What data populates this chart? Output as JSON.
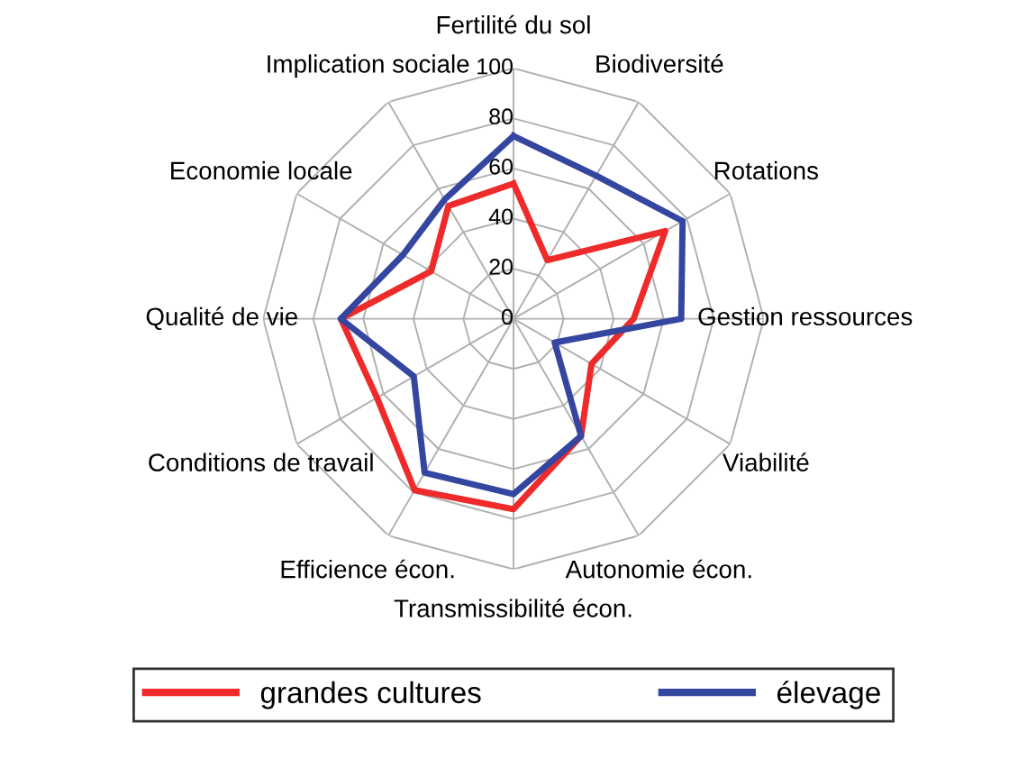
{
  "chart_data": {
    "type": "radar",
    "categories": [
      "Fertilité du sol",
      "Biodiversité",
      "Rotations",
      "Gestion ressources",
      "Viabilité",
      "Autonomie écon.",
      "Transmissibilité écon.",
      "Efficience écon.",
      "Conditions de travail",
      "Qualité de vie",
      "Economie locale",
      "Implication sociale"
    ],
    "series": [
      {
        "name": "grandes cultures",
        "color": "#ee2a2a",
        "values": [
          54,
          27,
          70,
          48,
          36,
          54,
          76,
          79,
          63,
          69,
          38,
          52
        ]
      },
      {
        "name": "élevage",
        "color": "#3446a0",
        "values": [
          73,
          66,
          78,
          67,
          19,
          54,
          70,
          71,
          46,
          69,
          51,
          55
        ]
      }
    ],
    "ylim": [
      0,
      100
    ],
    "yticks": [
      0,
      20,
      40,
      60,
      80,
      100
    ],
    "grid": true,
    "legend": "bottom",
    "marker": "none",
    "line_style": "solid"
  }
}
